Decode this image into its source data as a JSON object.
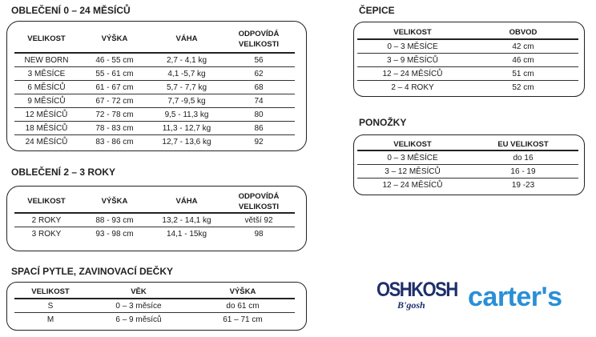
{
  "section1": {
    "title": "OBLEČENÍ 0 – 24 MĚSÍCŮ",
    "headers": [
      "VELIKOST",
      "VÝŠKA",
      "VÁHA",
      "ODPOVÍDÁ VELIKOSTI"
    ],
    "rows": [
      [
        "NEW BORN",
        "46 - 55 cm",
        "2,7 - 4,1 kg",
        "56"
      ],
      [
        "3 MĚSÍCE",
        "55 - 61 cm",
        "4,1 -5,7 kg",
        "62"
      ],
      [
        "6 MĚSÍCŮ",
        "61 - 67 cm",
        "5,7 - 7,7 kg",
        "68"
      ],
      [
        "9 MĚSÍCŮ",
        "67 - 72 cm",
        "7,7 -9,5 kg",
        "74"
      ],
      [
        "12 MĚSÍCŮ",
        "72 - 78 cm",
        "9,5 - 11,3 kg",
        "80"
      ],
      [
        "18 MĚSÍCŮ",
        "78 - 83 cm",
        "11,3 - 12,7 kg",
        "86"
      ],
      [
        "24 MĚSÍCŮ",
        "83 - 86 cm",
        "12,7 - 13,6 kg",
        "92"
      ]
    ]
  },
  "section2": {
    "title": "OBLEČENÍ 2 – 3 ROKY",
    "headers": [
      "VELIKOST",
      "VÝŠKA",
      "VÁHA",
      "ODPOVÍDÁ VELIKOSTI"
    ],
    "rows": [
      [
        "2 ROKY",
        "88 - 93 cm",
        "13,2 - 14,1 kg",
        "větší 92"
      ],
      [
        "3 ROKY",
        "93 - 98 cm",
        "14,1 - 15kg",
        "98"
      ]
    ]
  },
  "section3": {
    "title": "SPACÍ PYTLE, ZAVINOVACÍ DEČKY",
    "headers": [
      "VELIKOST",
      "VĚK",
      "VÝŠKA"
    ],
    "rows": [
      [
        "S",
        "0 – 3 měsíce",
        "do 61 cm"
      ],
      [
        "M",
        "6 – 9 měsíců",
        "61 – 71 cm"
      ]
    ]
  },
  "section4": {
    "title": "ČEPICE",
    "headers": [
      "VELIKOST",
      "OBVOD"
    ],
    "rows": [
      [
        "0 – 3 MĚSÍCE",
        "42 cm"
      ],
      [
        "3 – 9 MĚSÍCŮ",
        "46 cm"
      ],
      [
        "12 – 24 MĚSÍCŮ",
        "51 cm"
      ],
      [
        "2 – 4 ROKY",
        "52 cm"
      ]
    ]
  },
  "section5": {
    "title": "PONOŽKY",
    "headers": [
      "VELIKOST",
      "EU VELIKOST"
    ],
    "rows": [
      [
        "0 – 3 MĚSÍCE",
        "do 16"
      ],
      [
        "3 – 12 MĚSÍCŮ",
        "16 - 19"
      ],
      [
        "12 – 24 MĚSÍCŮ",
        "19 -23"
      ]
    ]
  },
  "logos": {
    "oshkosh_big": "OSHKOSH",
    "oshkosh_small": "B'gosh",
    "carters": "carter's"
  },
  "colors": {
    "oshkosh": "#1f2f6b",
    "carters": "#2a8fd6"
  }
}
